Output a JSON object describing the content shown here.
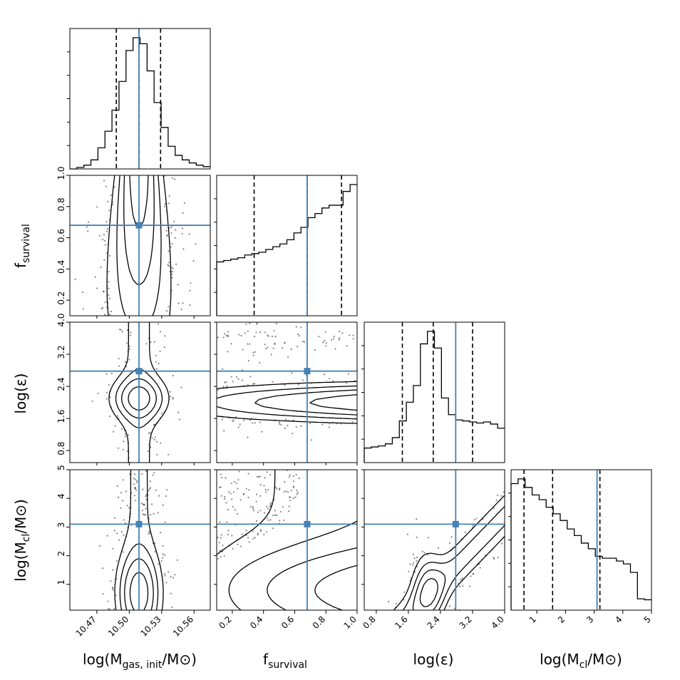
{
  "chart_data": {
    "type": "corner",
    "parameters": [
      {
        "key": "mgas",
        "label_main": "log(M",
        "label_sub": "gas, init",
        "label_tail": "/M⊙)",
        "range": [
          10.445,
          10.575
        ],
        "ticks": [
          10.47,
          10.5,
          10.53,
          10.56
        ],
        "tick_labels": [
          "10.47",
          "10.50",
          "10.53",
          "10.56"
        ]
      },
      {
        "key": "fsurv",
        "label_main": "f",
        "label_sub": "survival",
        "label_tail": "",
        "range": [
          0.1,
          1.0
        ],
        "ticks": [
          0.2,
          0.4,
          0.6,
          0.8,
          1.0
        ],
        "tick_labels": [
          "0.2",
          "0.4",
          "0.6",
          "0.8",
          "1.0"
        ]
      },
      {
        "key": "eps",
        "label_main": "log(ε)",
        "label_sub": "",
        "label_tail": "",
        "range": [
          0.5,
          4.0
        ],
        "ticks": [
          0.8,
          1.6,
          2.4,
          3.2,
          4.0
        ],
        "tick_labels": [
          "0.8",
          "1.6",
          "2.4",
          "3.2",
          "4.0"
        ]
      },
      {
        "key": "mcl",
        "label_main": "log(M",
        "label_sub": "cl",
        "label_tail": "/M⊙)",
        "range": [
          0.1,
          5.0
        ],
        "ticks": [
          1,
          2,
          3,
          4,
          5
        ],
        "tick_labels": [
          "1",
          "2",
          "3",
          "4",
          "5"
        ]
      }
    ],
    "truths": [
      10.509,
      0.68,
      2.78,
      3.1
    ],
    "quantiles": [
      [
        10.488,
        10.509,
        10.529
      ],
      [
        0.34,
        0.68,
        0.9
      ],
      [
        1.45,
        2.22,
        3.2
      ],
      [
        0.55,
        1.55,
        3.2
      ]
    ],
    "histograms": [
      {
        "edges": [
          10.445,
          10.4515,
          10.458,
          10.4645,
          10.471,
          10.4775,
          10.484,
          10.4905,
          10.497,
          10.5035,
          10.51,
          10.5165,
          10.523,
          10.5295,
          10.536,
          10.5425,
          10.549,
          10.5555,
          10.562,
          10.5685,
          10.575
        ],
        "counts": [
          0,
          2,
          5,
          12,
          28,
          50,
          78,
          116,
          157,
          174,
          166,
          130,
          88,
          55,
          30,
          18,
          12,
          8,
          5,
          3
        ]
      },
      {
        "edges": [
          0.1,
          0.145,
          0.19,
          0.235,
          0.28,
          0.325,
          0.37,
          0.415,
          0.46,
          0.505,
          0.55,
          0.595,
          0.64,
          0.685,
          0.73,
          0.775,
          0.82,
          0.865,
          0.91,
          0.955,
          1.0
        ],
        "counts": [
          39,
          40,
          41,
          42,
          44,
          45,
          46,
          48,
          50,
          52,
          55,
          60,
          64,
          71,
          74,
          78,
          80,
          80,
          90,
          95
        ]
      },
      {
        "edges": [
          0.5,
          0.675,
          0.85,
          1.025,
          1.2,
          1.375,
          1.55,
          1.725,
          1.9,
          2.075,
          2.25,
          2.425,
          2.6,
          2.775,
          2.95,
          3.125,
          3.3,
          3.475,
          3.65,
          3.825,
          4.0
        ],
        "counts": [
          14,
          15,
          16,
          18,
          24,
          40,
          58,
          74,
          114,
          126,
          110,
          62,
          46,
          41,
          40,
          39,
          38,
          39,
          37,
          33
        ]
      },
      {
        "edges": [
          0.1,
          0.345,
          0.59,
          0.835,
          1.08,
          1.325,
          1.57,
          1.815,
          2.06,
          2.305,
          2.55,
          2.795,
          3.04,
          3.285,
          3.53,
          3.775,
          4.02,
          4.265,
          4.51,
          4.755,
          5.0
        ],
        "counts": [
          134,
          139,
          130,
          122,
          117,
          109,
          102,
          95,
          86,
          79,
          71,
          65,
          57,
          55,
          55,
          52,
          49,
          40,
          12,
          11
        ]
      }
    ],
    "colors": {
      "truth": "#4682b4",
      "line": "#000000",
      "scatter": "#333333"
    }
  }
}
